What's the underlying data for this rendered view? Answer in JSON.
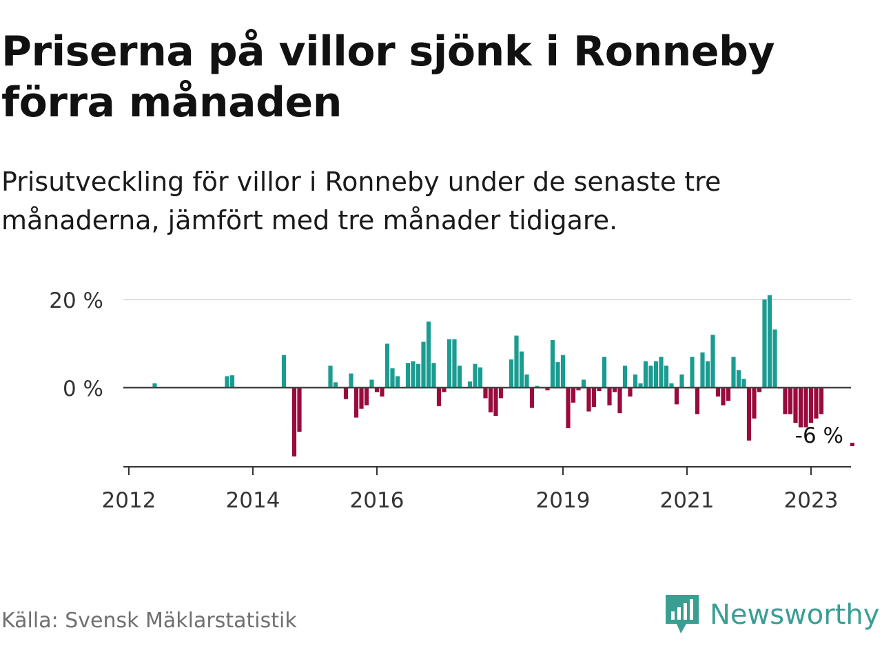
{
  "title": "Priserna på villor sjönk i Ronneby förra månaden",
  "subtitle": "Prisutveckling för villor i Ronneby under de senaste tre månaderna, jämfört med tre månader tidigare.",
  "source": "Källa: Svensk Mäklarstatistik",
  "brand": {
    "name": "Newsworthy",
    "icon": "newsworthy-logo-icon",
    "color": "#3a9e93"
  },
  "colors": {
    "positive": "#1a9c91",
    "negative": "#990a3d",
    "zero_line": "#444444",
    "grid": "#dddddd"
  },
  "chart_data": {
    "type": "bar",
    "y_unit": "%",
    "ylim": [
      -18,
      22
    ],
    "y_ticks": [
      {
        "value": 0,
        "label": "0 %"
      },
      {
        "value": 20,
        "label": "20 %"
      }
    ],
    "x_ticks": [
      {
        "date": "2012-01",
        "label": "2012"
      },
      {
        "date": "2014-01",
        "label": "2014"
      },
      {
        "date": "2016-01",
        "label": "2016"
      },
      {
        "date": "2019-01",
        "label": "2019"
      },
      {
        "date": "2021-01",
        "label": "2021"
      },
      {
        "date": "2023-01",
        "label": "2023"
      }
    ],
    "annotation": {
      "date": "2023-09",
      "value": -6,
      "label": "-6 %"
    },
    "data": [
      [
        "2012-06",
        1.0
      ],
      [
        "2013-08",
        2.6
      ],
      [
        "2013-09",
        2.8
      ],
      [
        "2014-07",
        7.4
      ],
      [
        "2014-09",
        -15.6
      ],
      [
        "2014-10",
        -10.0
      ],
      [
        "2015-04",
        5.0
      ],
      [
        "2015-05",
        1.2
      ],
      [
        "2015-07",
        -2.6
      ],
      [
        "2015-08",
        3.2
      ],
      [
        "2015-09",
        -6.8
      ],
      [
        "2015-10",
        -4.8
      ],
      [
        "2015-11",
        -4.0
      ],
      [
        "2015-12",
        1.8
      ],
      [
        "2016-01",
        -1.0
      ],
      [
        "2016-02",
        -2.0
      ],
      [
        "2016-03",
        10.0
      ],
      [
        "2016-04",
        4.4
      ],
      [
        "2016-05",
        2.6
      ],
      [
        "2016-07",
        5.6
      ],
      [
        "2016-08",
        6.0
      ],
      [
        "2016-09",
        5.4
      ],
      [
        "2016-10",
        10.4
      ],
      [
        "2016-11",
        15.0
      ],
      [
        "2016-12",
        5.6
      ],
      [
        "2017-01",
        -4.2
      ],
      [
        "2017-02",
        -1.0
      ],
      [
        "2017-03",
        11.0
      ],
      [
        "2017-04",
        11.0
      ],
      [
        "2017-05",
        5.0
      ],
      [
        "2017-07",
        1.4
      ],
      [
        "2017-08",
        5.4
      ],
      [
        "2017-09",
        4.6
      ],
      [
        "2017-10",
        -2.4
      ],
      [
        "2017-11",
        -5.6
      ],
      [
        "2017-12",
        -6.4
      ],
      [
        "2018-01",
        -2.4
      ],
      [
        "2018-03",
        6.4
      ],
      [
        "2018-04",
        11.8
      ],
      [
        "2018-05",
        8.2
      ],
      [
        "2018-06",
        3.0
      ],
      [
        "2018-07",
        -4.6
      ],
      [
        "2018-08",
        0.4
      ],
      [
        "2018-10",
        -0.6
      ],
      [
        "2018-11",
        10.8
      ],
      [
        "2018-12",
        5.8
      ],
      [
        "2019-01",
        7.4
      ],
      [
        "2019-02",
        -9.2
      ],
      [
        "2019-03",
        -3.4
      ],
      [
        "2019-04",
        -0.6
      ],
      [
        "2019-05",
        1.8
      ],
      [
        "2019-06",
        -5.4
      ],
      [
        "2019-07",
        -4.4
      ],
      [
        "2019-08",
        -0.8
      ],
      [
        "2019-09",
        7.0
      ],
      [
        "2019-10",
        -4.0
      ],
      [
        "2019-11",
        -1.0
      ],
      [
        "2019-12",
        -5.8
      ],
      [
        "2020-01",
        5.0
      ],
      [
        "2020-02",
        -2.0
      ],
      [
        "2020-03",
        3.0
      ],
      [
        "2020-04",
        1.0
      ],
      [
        "2020-05",
        6.0
      ],
      [
        "2020-06",
        5.0
      ],
      [
        "2020-07",
        6.0
      ],
      [
        "2020-08",
        7.0
      ],
      [
        "2020-09",
        5.0
      ],
      [
        "2020-10",
        1.0
      ],
      [
        "2020-11",
        -3.8
      ],
      [
        "2020-12",
        3.0
      ],
      [
        "2021-02",
        7.0
      ],
      [
        "2021-03",
        -6.0
      ],
      [
        "2021-04",
        8.0
      ],
      [
        "2021-05",
        6.0
      ],
      [
        "2021-06",
        12.0
      ],
      [
        "2021-07",
        -2.0
      ],
      [
        "2021-08",
        -4.0
      ],
      [
        "2021-09",
        -3.0
      ],
      [
        "2021-10",
        7.0
      ],
      [
        "2021-11",
        4.0
      ],
      [
        "2021-12",
        2.0
      ],
      [
        "2022-01",
        -12.0
      ],
      [
        "2022-02",
        -7.0
      ],
      [
        "2022-03",
        -1.0
      ],
      [
        "2022-04",
        20.0
      ],
      [
        "2022-05",
        21.0
      ],
      [
        "2022-06",
        13.2
      ],
      [
        "2022-07",
        -0.2
      ],
      [
        "2022-08",
        -6.0
      ],
      [
        "2022-09",
        -6.0
      ],
      [
        "2022-10",
        -8.0
      ],
      [
        "2022-11",
        -9.0
      ],
      [
        "2022-12",
        -9.0
      ],
      [
        "2023-01",
        -8.0
      ],
      [
        "2023-02",
        -7.0
      ],
      [
        "2023-03",
        -6.0
      ]
    ]
  }
}
